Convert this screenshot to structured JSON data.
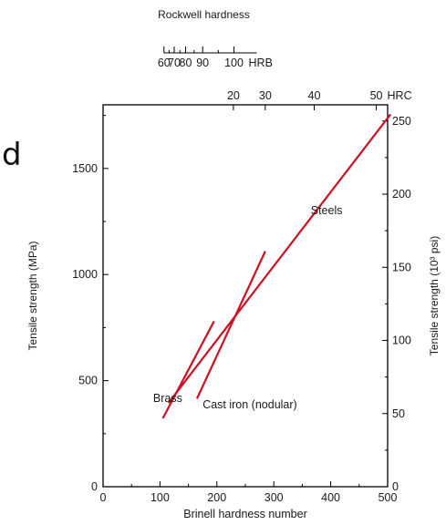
{
  "left_fragment": "d",
  "chart_data": {
    "type": "line",
    "title": "",
    "xlabel": "Brinell hardness number",
    "ylabel_left": "Tensile strength (MPa)",
    "ylabel_right": "Tensile strength (10³ psi)",
    "xlim": [
      0,
      500
    ],
    "ylim_mpa": [
      0,
      1800
    ],
    "ylim_psi_approx": [
      0,
      261
    ],
    "x_ticks": [
      "0",
      "100",
      "200",
      "300",
      "400",
      "500"
    ],
    "y_ticks_mpa": [
      "0",
      "500",
      "1000",
      "1500"
    ],
    "y_ticks_psi": [
      "0",
      "50",
      "100",
      "150",
      "200",
      "250"
    ],
    "grid": false,
    "top_scales": {
      "rockwell_title": "Rockwell hardness",
      "hrb": {
        "label": "HRB",
        "ticks": [
          {
            "label": "60",
            "bhn": 107
          },
          {
            "label": "70",
            "bhn": 125
          },
          {
            "label": "80",
            "bhn": 145
          },
          {
            "label": "90",
            "bhn": 175
          },
          {
            "label": "100",
            "bhn": 230
          }
        ],
        "range_bhn": [
          107,
          270
        ]
      },
      "hrc": {
        "label": "HRC",
        "ticks": [
          {
            "label": "20",
            "bhn": 229
          },
          {
            "label": "30",
            "bhn": 285
          },
          {
            "label": "40",
            "bhn": 371
          },
          {
            "label": "50",
            "bhn": 480
          }
        ],
        "range_bhn": [
          0,
          500
        ]
      }
    },
    "series": [
      {
        "name": "Steels",
        "color": "#cc1122",
        "x": [
          115,
          505
        ],
        "y": [
          395,
          1755
        ]
      },
      {
        "name": "Brass",
        "color": "#cc1122",
        "x": [
          105,
          195
        ],
        "y": [
          322,
          780
        ]
      },
      {
        "name": "Cast iron (nodular)",
        "color": "#cc1122",
        "x": [
          165,
          285
        ],
        "y": [
          415,
          1110
        ]
      }
    ],
    "annotations": [
      {
        "text": "Steels",
        "x": 365,
        "y": 1285
      },
      {
        "text": "Brass",
        "x": 88,
        "y": 400
      },
      {
        "text": "Cast iron (nodular)",
        "x": 175,
        "y": 370
      }
    ]
  }
}
